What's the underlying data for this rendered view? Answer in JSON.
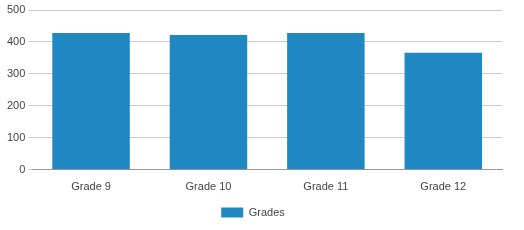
{
  "chart_data": {
    "type": "bar",
    "categories": [
      "Grade 9",
      "Grade 10",
      "Grade 11",
      "Grade 12"
    ],
    "series": [
      {
        "name": "Grades",
        "color": "#1f88c2",
        "values": [
          428,
          422,
          428,
          366
        ]
      }
    ],
    "ylim": [
      0,
      500
    ],
    "yticks": [
      0,
      100,
      200,
      300,
      400,
      500
    ],
    "grid": true,
    "legend": "bottom"
  }
}
